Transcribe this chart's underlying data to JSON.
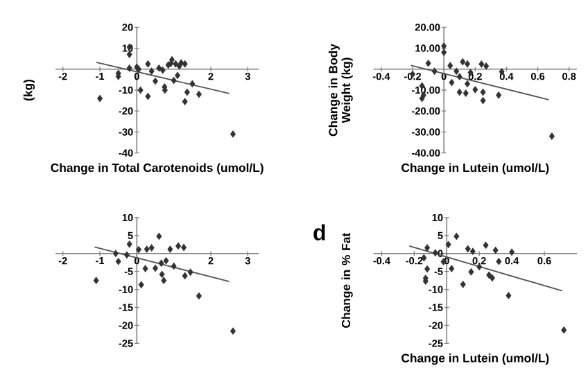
{
  "chart_data": [
    {
      "type": "scatter",
      "xlabel": "Change in Total Carotenoids (umol/L)",
      "ylabel": "(kg)",
      "xlim": [
        -2.2,
        3.3
      ],
      "ylim": [
        -40,
        20
      ],
      "xticks": [
        -2,
        -1,
        0,
        2,
        3
      ],
      "yticks": [
        20,
        10,
        -10,
        -20,
        -30,
        -40
      ],
      "series": [
        {
          "type": "scatter",
          "marker": "diamond",
          "color": "#333333",
          "x": [
            -0.2,
            -0.2,
            -1.0,
            -0.5,
            -0.5,
            -0.2,
            0,
            0.05,
            0.1,
            0.3,
            0.3,
            0.4,
            0.5,
            0.6,
            0.7,
            0.75,
            0.76,
            0.85,
            0.92,
            0.95,
            1.0,
            1.05,
            1.1,
            1.15,
            1.2,
            1.3,
            1.3,
            1.36,
            1.5,
            1.68,
            2.6
          ],
          "values": [
            10.5,
            7,
            -14,
            -2,
            -3.5,
            0.5,
            1,
            0,
            -10,
            -13,
            2.5,
            -1,
            -5.7,
            0.5,
            -0.5,
            -8.5,
            -10,
            2,
            2.7,
            4.5,
            -5.4,
            2.5,
            -3,
            1.5,
            3,
            2.5,
            -15.5,
            -11,
            -7,
            -12,
            -31
          ]
        },
        {
          "type": "line",
          "color": "#555555",
          "x": [
            -1.1,
            2.5
          ],
          "values": [
            3.3,
            -11.6
          ]
        }
      ]
    },
    {
      "type": "scatter",
      "xlabel": "Change in Lutein (umol/L)",
      "ylabel": "Change in Body Weight (kg)",
      "xlim": [
        -0.45,
        0.85
      ],
      "ylim": [
        -40,
        20
      ],
      "xticks": [
        -0.4,
        -0.2,
        0,
        0.2,
        0.4,
        0.6,
        0.8
      ],
      "yticks": [
        {
          "value": 20,
          "label": "20.00"
        },
        {
          "value": 10,
          "label": "10.00"
        },
        {
          "value": -10,
          "label": "-10.00"
        },
        {
          "value": -20,
          "label": "-20.00"
        },
        {
          "value": -30,
          "label": "-30.00"
        },
        {
          "value": -40,
          "label": "-40.00"
        }
      ],
      "series": [
        {
          "type": "scatter",
          "marker": "diamond",
          "color": "#333333",
          "x": [
            0,
            0,
            -0.1,
            -0.2,
            -0.14,
            -0.13,
            -0.14,
            -0.06,
            0.04,
            0.05,
            0.08,
            0.1,
            0.12,
            0.15,
            0.17,
            0.15,
            0.1,
            0.14,
            0.2,
            0.24,
            0.27,
            0.25,
            0.25,
            0.35,
            0.37,
            0.69
          ],
          "values": [
            11,
            8,
            2.8,
            -2.4,
            -8,
            -12.4,
            -14,
            -1,
            1.7,
            -6.4,
            -1,
            -3.6,
            3.5,
            2.5,
            -1.6,
            -7,
            -11,
            -11.5,
            -9.8,
            2.4,
            1.5,
            -11,
            -15,
            -12.4,
            -1.2,
            -32
          ]
        },
        {
          "type": "line",
          "color": "#555555",
          "x": [
            -0.21,
            0.67
          ],
          "values": [
            1.8,
            -14.6
          ]
        }
      ]
    },
    {
      "type": "scatter",
      "xlim": [
        -2.2,
        3.3
      ],
      "ylim": [
        -25,
        10
      ],
      "xticks": [
        -2,
        -1,
        0,
        2,
        3
      ],
      "yticks": [
        10,
        5,
        -5,
        -10,
        -15,
        -20,
        -25
      ],
      "series": [
        {
          "type": "scatter",
          "marker": "diamond",
          "color": "#333333",
          "x": [
            -1.1,
            -0.2,
            -0.57,
            -0.5,
            -0.27,
            0.05,
            0.12,
            0.23,
            0.27,
            0.4,
            0.5,
            0.6,
            0.66,
            0.68,
            0.73,
            0.79,
            0.9,
            1.0,
            1.12,
            1.27,
            1.3,
            1.45,
            1.68,
            2.6
          ],
          "values": [
            -7.5,
            2.6,
            0,
            -2.2,
            -0.4,
            1.1,
            -8.7,
            -4.2,
            1.2,
            1.6,
            -4.1,
            4.8,
            -2.7,
            -5.8,
            -7.5,
            -2,
            1.2,
            -3.5,
            2.1,
            1.7,
            -6.2,
            -5.2,
            -11.8,
            -21.6
          ]
        },
        {
          "type": "line",
          "color": "#555555",
          "x": [
            -1.14,
            2.5
          ],
          "values": [
            1.8,
            -7.8
          ]
        }
      ]
    },
    {
      "type": "scatter",
      "xlabel": "Change in Lutein (umol/L)",
      "ylabel": "Change in % Fat",
      "annotations": [
        "d"
      ],
      "xlim": [
        -0.45,
        0.8
      ],
      "ylim": [
        -25,
        10
      ],
      "xticks": [
        -0.4,
        -0.2,
        0,
        0.2,
        0.4,
        0.6
      ],
      "yticks": [
        10,
        5,
        0,
        -5,
        -10,
        -15,
        -20,
        -25
      ],
      "series": [
        {
          "type": "scatter",
          "marker": "diamond",
          "color": "#333333",
          "x": [
            0.06,
            0.01,
            -0.12,
            -0.14,
            -0.12,
            -0.13,
            -0.13,
            -0.07,
            -0.02,
            0.03,
            0.1,
            0.13,
            0.15,
            0.16,
            0.2,
            0.24,
            0.26,
            0.28,
            0.3,
            0.32,
            0.38,
            0.4,
            0.72
          ],
          "values": [
            4.8,
            2.5,
            1.6,
            -1.2,
            -4.3,
            -6.9,
            -7.7,
            0.2,
            -2.3,
            -4.2,
            -8.6,
            1.3,
            -5.1,
            0.6,
            -3.7,
            2.3,
            -6,
            -6.8,
            0.9,
            -2.2,
            -11.7,
            0.4,
            -21.3
          ]
        },
        {
          "type": "line",
          "color": "#555555",
          "x": [
            -0.23,
            0.71
          ],
          "values": [
            2.1,
            -10.4
          ]
        }
      ]
    }
  ]
}
